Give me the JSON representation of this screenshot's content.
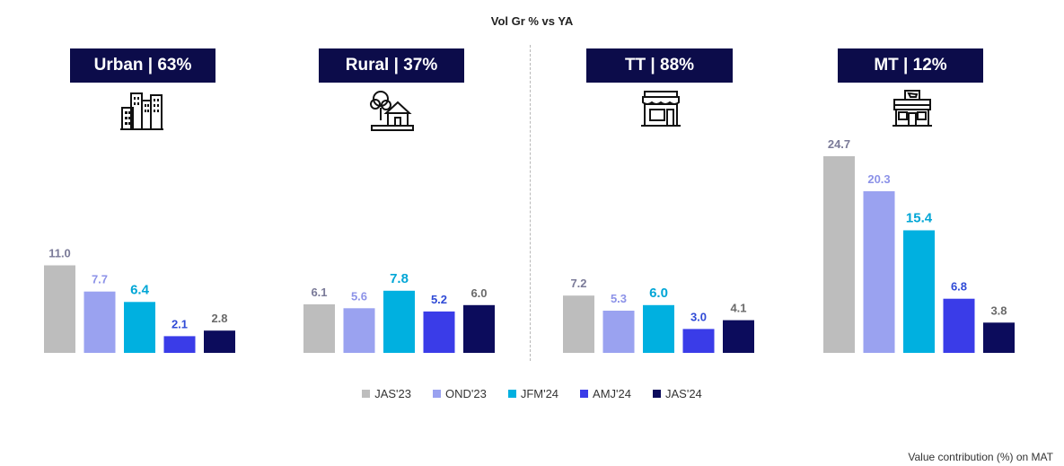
{
  "chart_data": {
    "type": "bar",
    "title": "Vol Gr % vs YA",
    "legend_position": "bottom",
    "series_names": [
      "JAS'23",
      "OND'23",
      "JFM'24",
      "AMJ'24",
      "JAS'24"
    ],
    "colors": [
      "#bdbdbd",
      "#9aa2f0",
      "#00b0e0",
      "#3a3ce8",
      "#0c0c5c"
    ],
    "label_colors": [
      "#7a7a98",
      "#8c92e8",
      "#00a6d6",
      "#2f4ad6",
      "#6a6a6a"
    ],
    "ylim": [
      0,
      25
    ],
    "panels": [
      {
        "header": "Urban | 63%",
        "icon": "city-buildings-icon",
        "values": [
          11.0,
          7.7,
          6.4,
          2.1,
          2.8
        ],
        "labels": [
          "11.0",
          "7.7",
          "6.4",
          "2.1",
          "2.8"
        ]
      },
      {
        "header": "Rural | 37%",
        "icon": "rural-house-icon",
        "values": [
          6.1,
          5.6,
          7.8,
          5.2,
          6.0
        ],
        "labels": [
          "6.1",
          "5.6",
          "7.8",
          "5.2",
          "6.0"
        ]
      },
      {
        "header": "TT | 88%",
        "icon": "storefront-icon",
        "values": [
          7.2,
          5.3,
          6.0,
          3.0,
          4.1
        ],
        "labels": [
          "7.2",
          "5.3",
          "6.0",
          "3.0",
          "4.1"
        ]
      },
      {
        "header": "MT | 12%",
        "icon": "supermarket-icon",
        "values": [
          24.7,
          20.3,
          15.4,
          6.8,
          3.8
        ],
        "labels": [
          "24.7",
          "20.3",
          "15.4",
          "6.8",
          "3.8"
        ]
      }
    ],
    "footnote": "Value contribution (%) on MAT"
  }
}
